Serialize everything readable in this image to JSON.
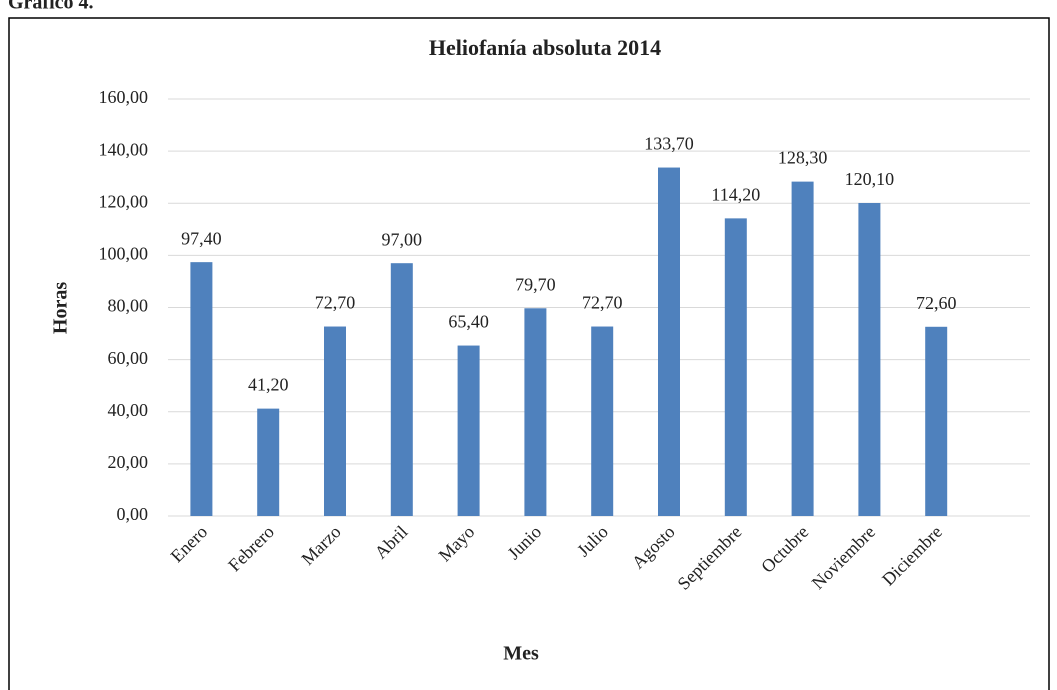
{
  "chart_data": {
    "type": "bar",
    "figure_label": "Gráfico 4.",
    "title": "Heliofanía absoluta  2014",
    "x_label": "Mes",
    "y_label": "Horas",
    "categories": [
      "Enero",
      "Febrero",
      "Marzo",
      "Abril",
      "Mayo",
      "Junio",
      "Julio",
      "Agosto",
      "Septiembre",
      "Octubre",
      "Noviembre",
      "Diciembre"
    ],
    "values": [
      97.4,
      41.2,
      72.7,
      97.0,
      65.4,
      79.7,
      72.7,
      133.7,
      114.2,
      128.3,
      120.1,
      72.6
    ],
    "value_labels": [
      "97,40",
      "41,20",
      "72,70",
      "97,00",
      "65,40",
      "79,70",
      "72,70",
      "133,70",
      "114,20",
      "128,30",
      "120,10",
      "72,60"
    ],
    "color": "#4f81bd",
    "ylim": [
      0,
      160
    ],
    "yticks": [
      {
        "value": 0,
        "label": "0,00"
      },
      {
        "value": 20,
        "label": "20,00"
      },
      {
        "value": 40,
        "label": "40,00"
      },
      {
        "value": 60,
        "label": "60,00"
      },
      {
        "value": 80,
        "label": "80,00"
      },
      {
        "value": 100,
        "label": "100,00"
      },
      {
        "value": 120,
        "label": "120,00"
      },
      {
        "value": 140,
        "label": "140,00"
      },
      {
        "value": 160,
        "label": "160,00"
      }
    ],
    "grid": true
  }
}
